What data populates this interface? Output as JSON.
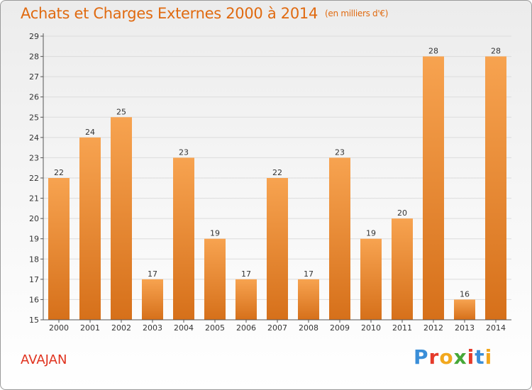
{
  "header": {
    "title": "Achats et Charges Externes 2000 à 2014",
    "unit": "(en milliers d'€)"
  },
  "footer": {
    "commune": "AVAJAN",
    "logo": [
      "P",
      "r",
      "o",
      "x",
      "i",
      "t",
      "i"
    ]
  },
  "chart_data": {
    "type": "bar",
    "title": "Achats et Charges Externes 2000 à 2014",
    "subtitle": "(en milliers d'€)",
    "categories": [
      "2000",
      "2001",
      "2002",
      "2003",
      "2004",
      "2005",
      "2006",
      "2007",
      "2008",
      "2009",
      "2010",
      "2011",
      "2012",
      "2013",
      "2014"
    ],
    "values": [
      22,
      24,
      25,
      17,
      23,
      19,
      17,
      22,
      17,
      23,
      19,
      20,
      28,
      16,
      28
    ],
    "ylim": [
      15,
      29
    ],
    "yticks": [
      15,
      16,
      17,
      18,
      19,
      20,
      21,
      22,
      23,
      24,
      25,
      26,
      27,
      28,
      29
    ],
    "grid": true,
    "colors": {
      "bar_top": "#f7a350",
      "bar_bottom": "#d6701a",
      "grid": "#dcdcdc",
      "axis": "#555555"
    }
  }
}
